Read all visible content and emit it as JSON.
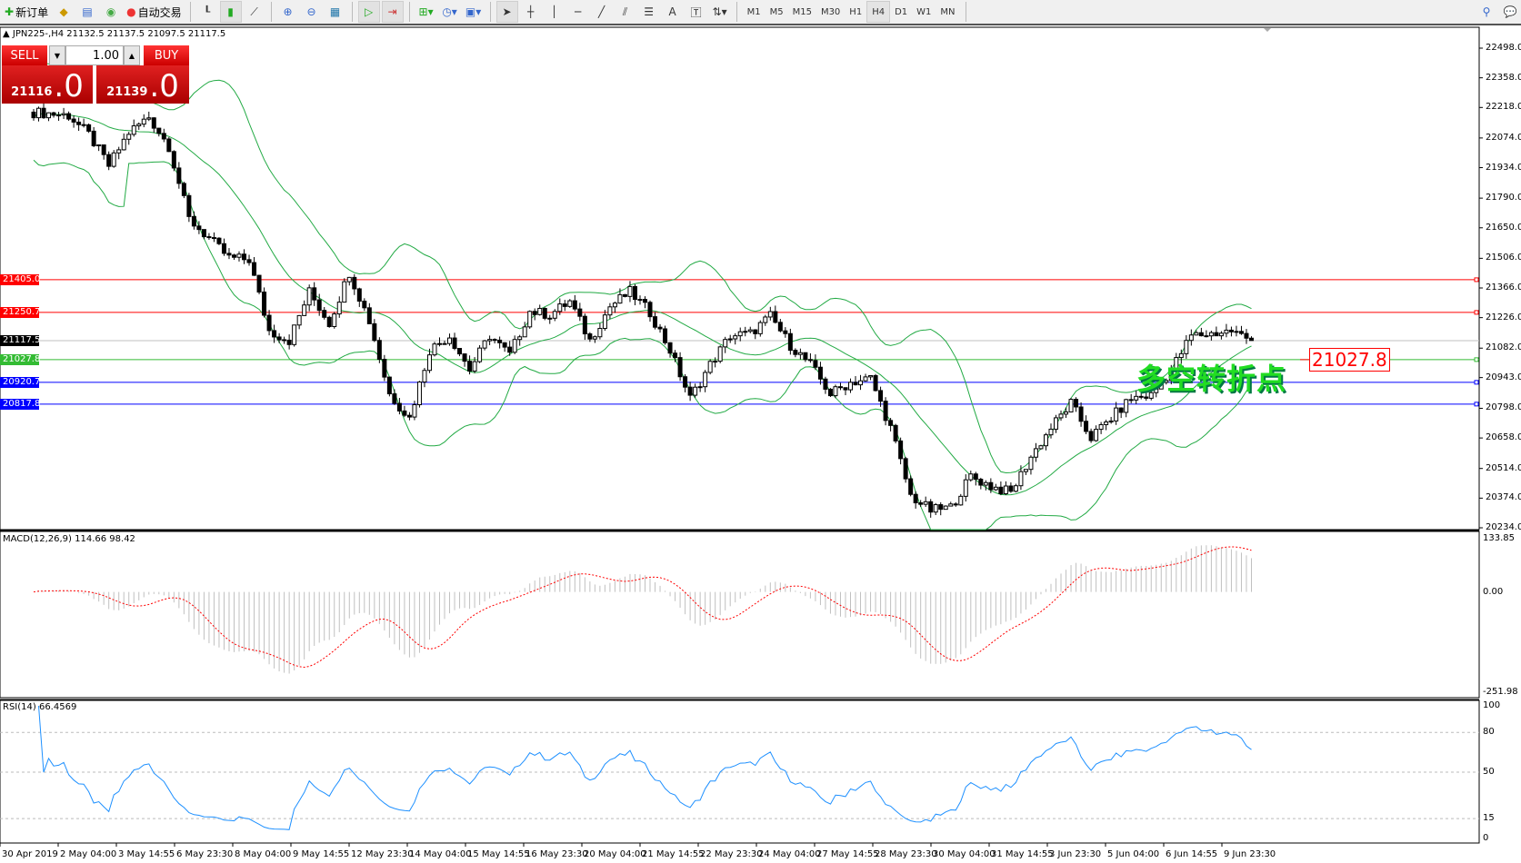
{
  "toolbar": {
    "new_order": "新订单",
    "auto_trading": "自动交易",
    "timeframes": [
      "M1",
      "M5",
      "M15",
      "M30",
      "H1",
      "H4",
      "D1",
      "W1",
      "MN"
    ],
    "active_timeframe": "H4"
  },
  "chart": {
    "header": "JPN225-,H4  21132.5 21137.5 21097.5 21117.5",
    "trade_panel": {
      "sell": "SELL",
      "buy": "BUY",
      "lot": "1.00",
      "sell_price_main": "21116",
      "sell_price_frac": ".0",
      "buy_price_main": "21139",
      "buy_price_frac": ".0"
    },
    "price_axis": [
      "22498.0",
      "22358.0",
      "22218.0",
      "22074.0",
      "21934.0",
      "21790.0",
      "21650.0",
      "21506.0",
      "21366.0",
      "21226.0",
      "21082.0",
      "20943.0",
      "20798.0",
      "20658.0",
      "20514.0",
      "20374.0",
      "20234.0"
    ],
    "price_range": [
      20234.0,
      22498.0
    ],
    "hlines": [
      {
        "price": "21405.0",
        "color": "#ff0000"
      },
      {
        "price": "21250.7",
        "color": "#ff0000"
      },
      {
        "price": "21117.5",
        "color": "#000000",
        "line": "#c0c0c0"
      },
      {
        "price": "21027.8",
        "color": "#33bb33"
      },
      {
        "price": "20920.7",
        "color": "#0000ff"
      },
      {
        "price": "20817.8",
        "color": "#0000ff"
      }
    ],
    "annotation": "多空转折点",
    "annotation_price_label": "21027.8",
    "closes": [
      22196,
      22190,
      22180,
      22090,
      21943,
      22100,
      22173,
      22035,
      21692,
      21600,
      21508,
      21500,
      21164,
      21118,
      21348,
      21200,
      21440,
      21210,
      20866,
      20752,
      21073,
      21141,
      20981,
      21141,
      21050,
      21256,
      21240,
      21302,
      21118,
      21279,
      21348,
      21250,
      21073,
      20844,
      21004,
      21141,
      21150,
      21233,
      21096,
      21004,
      20866,
      20920,
      20940,
      20706,
      20385,
      20316,
      20330,
      20477,
      20430,
      20400,
      20569,
      20706,
      20821,
      20660,
      20752,
      20844,
      20860,
      20981,
      21141,
      21150,
      21164,
      21118
    ],
    "series_colors": {
      "bull_body": "#ffffff",
      "bear_body": "#000000",
      "bands": "#22aa44"
    }
  },
  "macd": {
    "label": "MACD(12,26,9) 114.66 98.42",
    "axis": [
      "133.85",
      "0.00",
      "-251.98"
    ],
    "range": [
      -251.98,
      133.85
    ],
    "histogram_color": "#c0c0c0",
    "signal_color": "#ff0000"
  },
  "rsi": {
    "label": "RSI(14) 66.4569",
    "axis": [
      "100",
      "80",
      "50",
      "15",
      "0"
    ],
    "levels": [
      80,
      50,
      15
    ],
    "line_color": "#1e90ff"
  },
  "time_axis": [
    "30 Apr 2019",
    "2 May 04:00",
    "3 May 14:55",
    "6 May 23:30",
    "8 May 04:00",
    "9 May 14:55",
    "12 May 23:30",
    "14 May 04:00",
    "15 May 14:55",
    "16 May 23:30",
    "20 May 04:00",
    "21 May 14:55",
    "22 May 23:30",
    "24 May 04:00",
    "27 May 14:55",
    "28 May 23:30",
    "30 May 04:00",
    "31 May 14:55",
    "3 Jun 23:30",
    "5 Jun 04:00",
    "6 Jun 14:55",
    "9 Jun 23:30"
  ]
}
